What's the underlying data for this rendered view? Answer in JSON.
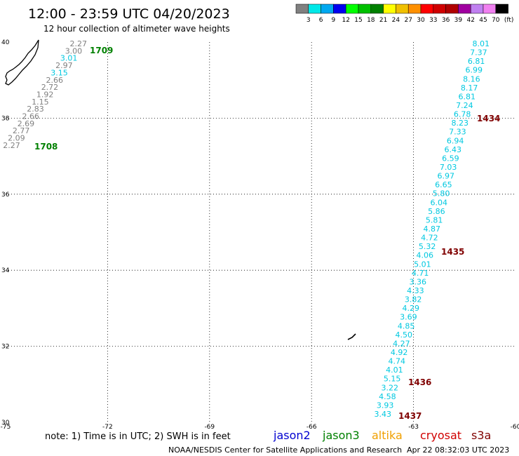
{
  "header": {
    "title": "12:00 - 23:59 UTC 04/20/2023",
    "subtitle": "12 hour collection of altimeter wave heights"
  },
  "legend": {
    "colors": [
      "#808080",
      "#00e8e8",
      "#00a8f0",
      "#0000f0",
      "#00ff00",
      "#00c000",
      "#008000",
      "#ffff00",
      "#f0c000",
      "#ff9000",
      "#ff0000",
      "#d00000",
      "#b00000",
      "#a000a0",
      "#c080f0",
      "#f080f0",
      "#000000"
    ],
    "labels": [
      "3",
      "6",
      "9",
      "12",
      "15",
      "18",
      "21",
      "24",
      "27",
      "30",
      "33",
      "36",
      "39",
      "42",
      "45",
      "70"
    ],
    "unit": "(ft)"
  },
  "map": {
    "lon_ticks": [
      "-75",
      "-72",
      "-69",
      "-66",
      "-63",
      "-60"
    ],
    "lat_ticks": [
      "40",
      "38",
      "36",
      "34",
      "32",
      "30"
    ],
    "lon_range": [
      -75,
      -60
    ],
    "lat_range": [
      30,
      40
    ],
    "grid": "dotted",
    "gray_track": [
      "2.27",
      "3.00",
      "3.01",
      "2.97",
      "3.15",
      "2.66",
      "2.72",
      "1.92",
      "1.15",
      "2.83",
      "2.66",
      "2.69",
      "2.77",
      "2.09",
      "2.27"
    ],
    "cyan_track": [
      "8.01",
      "7.37",
      "6.81",
      "6.99",
      "8.16",
      "8.17",
      "6.81",
      "7.24",
      "6.78",
      "8.23",
      "7.33",
      "6.94",
      "6.43",
      "6.59",
      "7.03",
      "6.97",
      "6.65",
      "5.80",
      "6.04",
      "5.86",
      "5.81",
      "4.87",
      "4.72",
      "5.32",
      "4.06",
      "5.01",
      "4.71",
      "3.36",
      "4.33",
      "3.82",
      "4.29",
      "3.69",
      "4.85",
      "4.50",
      "4.27",
      "4.92",
      "4.74",
      "4.01",
      "5.15",
      "3.22",
      "4.58",
      "3.93",
      "3.43"
    ],
    "time_labels": [
      {
        "text": "1709",
        "color": "#008000"
      },
      {
        "text": "1708",
        "color": "#008000"
      },
      {
        "text": "1434",
        "color": "#800000"
      },
      {
        "text": "1435",
        "color": "#800000"
      },
      {
        "text": "1436",
        "color": "#800000"
      },
      {
        "text": "1437",
        "color": "#800000"
      }
    ]
  },
  "footer": {
    "note": "note: 1) Time is in UTC; 2) SWH is in feet",
    "satellites": [
      {
        "name": "jason2",
        "color": "#0000d0"
      },
      {
        "name": "jason3",
        "color": "#008000"
      },
      {
        "name": "altika",
        "color": "#f0a000"
      },
      {
        "name": "cryosat",
        "color": "#d00000"
      },
      {
        "name": "s3a",
        "color": "#800000"
      }
    ],
    "credit": "NOAA/NESDIS Center for Satellite Applications and Research",
    "timestamp": "Apr 22 08:32:03 UTC 2023"
  }
}
